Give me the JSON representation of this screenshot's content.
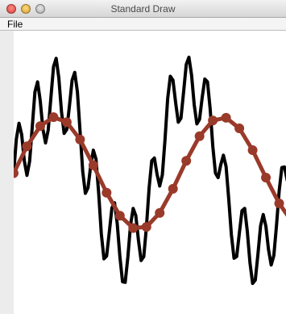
{
  "window": {
    "title": "Standard Draw"
  },
  "menu": {
    "file_label": "File"
  },
  "colors": {
    "wave": "#000000",
    "sampled_line": "#9a3a2a",
    "sample_point": "#9a3a2a",
    "canvas_bg": "#ffffff"
  },
  "chart_data": {
    "type": "line",
    "title": "",
    "xlabel": "",
    "ylabel": "",
    "grid": false,
    "legend": false,
    "xlim": [
      0,
      10.5
    ],
    "ylim": [
      -2.4,
      2.4
    ],
    "series": [
      {
        "kind": "line",
        "x": [
          0,
          0.1,
          0.2,
          0.3,
          0.4,
          0.5,
          0.6,
          0.7,
          0.8,
          0.9,
          1,
          1.1,
          1.2,
          1.3,
          1.4,
          1.5,
          1.6,
          1.7,
          1.8,
          1.9,
          2,
          2.1,
          2.2,
          2.3,
          2.4,
          2.5,
          2.6,
          2.7,
          2.8,
          2.9,
          3,
          3.1,
          3.2,
          3.3,
          3.4,
          3.5,
          3.6,
          3.7,
          3.8,
          3.9,
          4,
          4.1,
          4.2,
          4.3,
          4.4,
          4.5,
          4.6,
          4.7,
          4.8,
          4.9,
          5,
          5.1,
          5.2,
          5.3,
          5.4,
          5.5,
          5.6,
          5.7,
          5.8,
          5.9,
          6,
          6.1,
          6.2,
          6.3,
          6.4,
          6.5,
          6.6,
          6.7,
          6.8,
          6.9,
          7,
          7.1,
          7.2,
          7.3,
          7.4,
          7.5,
          7.6,
          7.7,
          7.8,
          7.9,
          8,
          8.1,
          8.2,
          8.3,
          8.4,
          8.5,
          8.6,
          8.7,
          8.8,
          8.9,
          9,
          9.1,
          9.2,
          9.3,
          9.4,
          9.5,
          9.6,
          9.7,
          9.8,
          9.9,
          10,
          10.1,
          10.2,
          10.3,
          10.4,
          10.5
        ],
        "y": [
          0,
          0.61,
          0.89,
          0.69,
          0.22,
          -0.04,
          0.21,
          0.83,
          1.45,
          1.63,
          1.29,
          0.79,
          0.54,
          0.77,
          1.34,
          1.9,
          2.05,
          1.7,
          1.1,
          0.71,
          0.78,
          1.2,
          1.66,
          1.8,
          1.45,
          0.75,
          0.03,
          -0.36,
          -0.26,
          0.13,
          0.41,
          0.25,
          -0.35,
          -1.08,
          -1.53,
          -1.48,
          -1.06,
          -0.62,
          -0.53,
          -0.9,
          -1.49,
          -1.94,
          -1.95,
          -1.5,
          -0.93,
          -0.63,
          -0.76,
          -1.2,
          -1.56,
          -1.49,
          -0.96,
          -0.27,
          0.22,
          0.27,
          -0.02,
          -0.23,
          -0.03,
          0.6,
          1.33,
          1.73,
          1.66,
          1.26,
          0.91,
          0.98,
          1.45,
          1.94,
          2.07,
          1.75,
          1.22,
          0.88,
          0.96,
          1.35,
          1.68,
          1.63,
          1.15,
          0.48,
          0.0,
          -0.08,
          0.15,
          0.32,
          0.12,
          -0.46,
          -1.1,
          -1.52,
          -1.49,
          -1.07,
          -0.67,
          -0.63,
          -1.04,
          -1.6,
          -1.97,
          -1.91,
          -1.45,
          -0.94,
          -0.74,
          -0.95,
          -1.37,
          -1.64,
          -1.47,
          -0.93,
          -0.32,
          0.1,
          0.11,
          -0.12,
          -0.3,
          -0.12
        ]
      },
      {
        "kind": "line_with_markers",
        "x": [
          0,
          0.5,
          1,
          1.5,
          2,
          2.5,
          3,
          3.5,
          4,
          4.5,
          5,
          5.5,
          6,
          6.5,
          7,
          7.5,
          8,
          8.5,
          9,
          9.5,
          10,
          10.5
        ],
        "y": [
          0,
          0.48,
          0.84,
          1,
          0.91,
          0.6,
          0.14,
          -0.35,
          -0.76,
          -0.98,
          -0.96,
          -0.71,
          -0.28,
          0.22,
          0.66,
          0.94,
          0.99,
          0.8,
          0.41,
          -0.08,
          -0.54,
          -0.88
        ]
      }
    ]
  }
}
